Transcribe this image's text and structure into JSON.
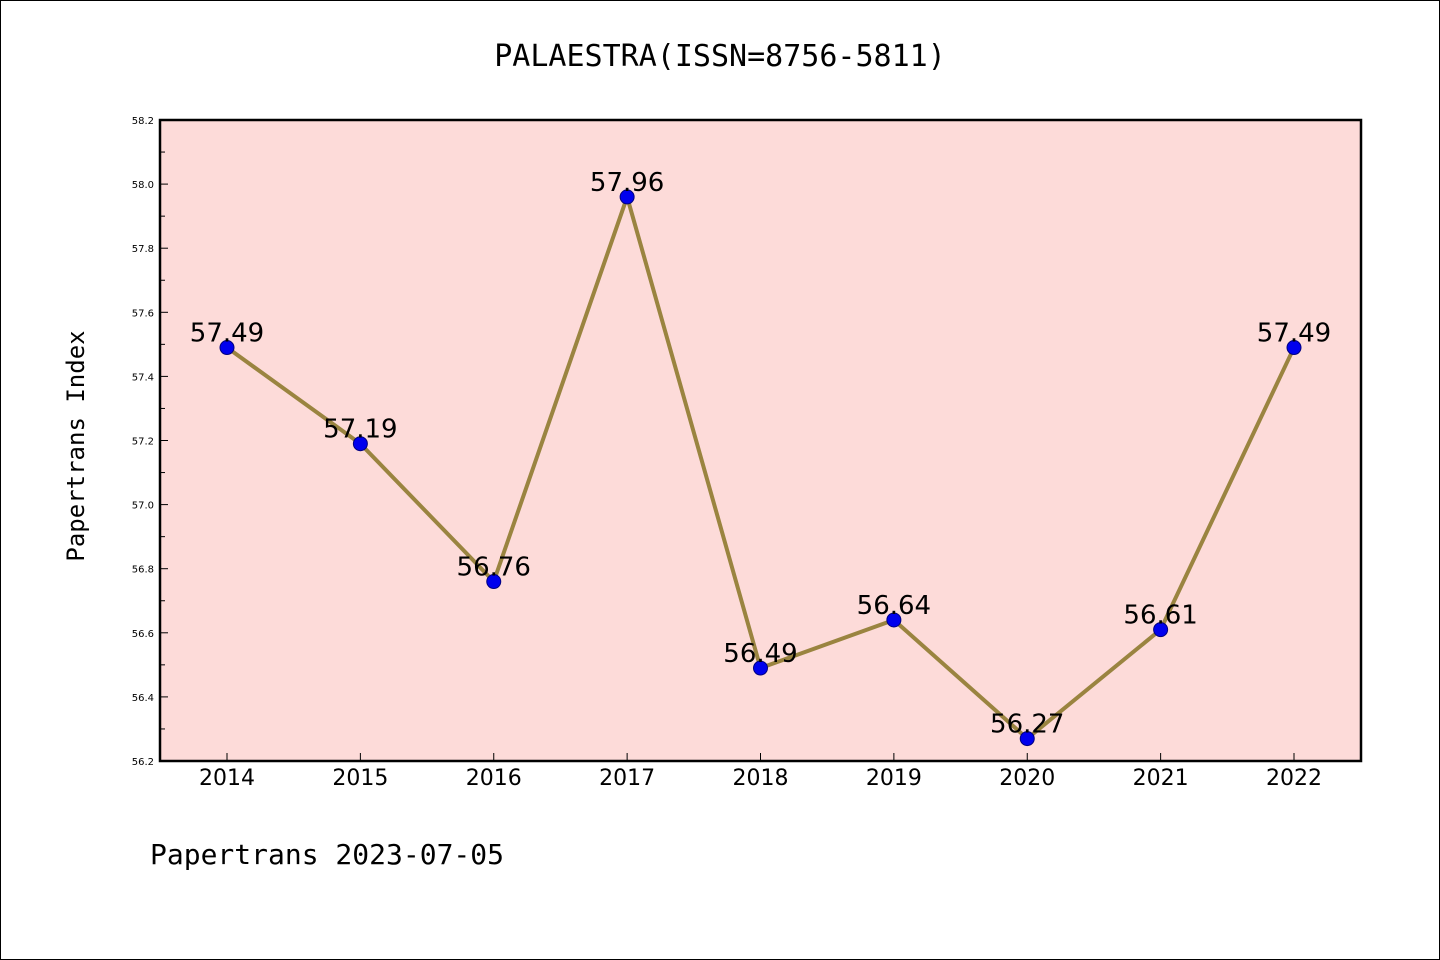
{
  "colors": {
    "plot_background": "#fddbd9",
    "line": "#9a8440",
    "marker_fill": "#0000ee",
    "marker_edge": "#000080",
    "frame": "#000000"
  },
  "footer": "Papertrans 2023-07-05",
  "chart_data": {
    "type": "line",
    "title": "PALAESTRA(ISSN=8756-5811)",
    "xlabel": "",
    "ylabel": "Papertrans Index",
    "categories": [
      "2014",
      "2015",
      "2016",
      "2017",
      "2018",
      "2019",
      "2020",
      "2021",
      "2022"
    ],
    "values": [
      57.49,
      57.19,
      56.76,
      57.96,
      56.49,
      56.64,
      56.27,
      56.61,
      57.49
    ],
    "data_labels": [
      "57.49",
      "57.19",
      "56.76",
      "57.96",
      "56.49",
      "56.64",
      "56.27",
      "56.61",
      "57.49"
    ],
    "ylim": [
      56.2,
      58.2
    ],
    "yticks": [
      "56.2",
      "56.4",
      "56.6",
      "56.8",
      "57.0",
      "57.2",
      "57.4",
      "57.6",
      "57.8",
      "58.0",
      "58.2"
    ],
    "grid": false,
    "legend": "none"
  }
}
